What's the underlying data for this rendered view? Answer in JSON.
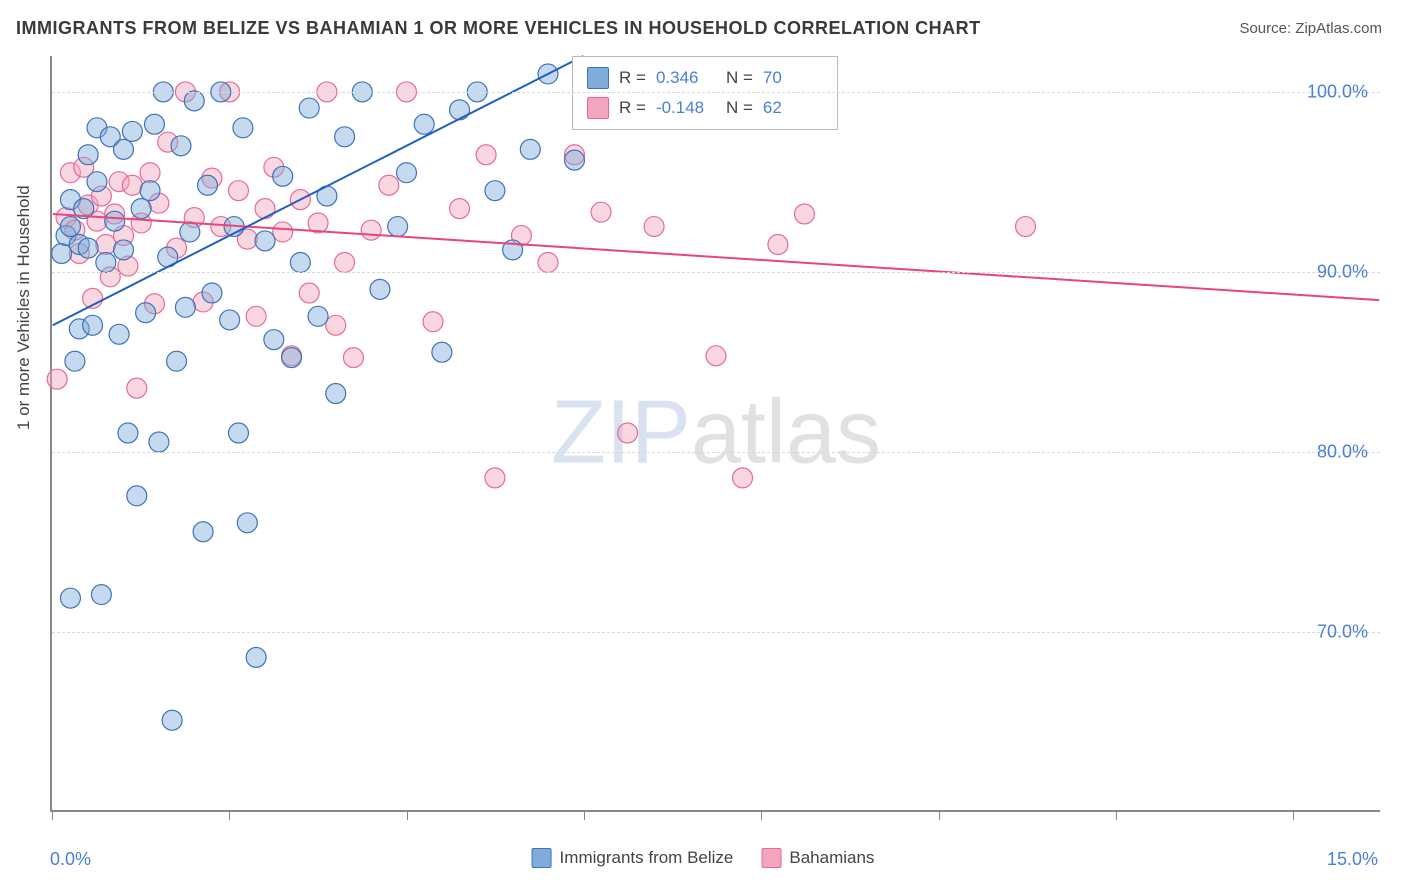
{
  "title": "IMMIGRANTS FROM BELIZE VS BAHAMIAN 1 OR MORE VEHICLES IN HOUSEHOLD CORRELATION CHART",
  "source": "Source: ZipAtlas.com",
  "ylabel": "1 or more Vehicles in Household",
  "watermark": {
    "part1": "ZIP",
    "part2": "atlas"
  },
  "chart": {
    "type": "scatter",
    "background_color": "#ffffff",
    "grid_color": "#d9d9d9",
    "axis_color": "#888888",
    "xlim": [
      0,
      15
    ],
    "ylim": [
      60,
      102
    ],
    "xticks": [
      0,
      2,
      4,
      6,
      8,
      10,
      12,
      14
    ],
    "xtick_labels_shown": {
      "0": "0.0%",
      "15": "15.0%"
    },
    "yticks": [
      70,
      80,
      90,
      100
    ],
    "ytick_labels": [
      "70.0%",
      "80.0%",
      "90.0%",
      "100.0%"
    ],
    "marker_radius": 10,
    "marker_opacity": 0.45,
    "line_width": 2,
    "tick_label_color": "#4a7fd4",
    "tick_label_fontsize": 18,
    "title_fontsize": 18,
    "title_color": "#3a3a3a"
  },
  "series_a": {
    "label": "Immigrants from Belize",
    "fill": "#7facdc",
    "stroke": "#3f72b8",
    "line_color": "#1f5fc4",
    "R": "0.346",
    "N": "70",
    "trend": {
      "x1": 0,
      "y1": 87.0,
      "x2": 6.0,
      "y2": 102.0
    },
    "points": [
      [
        0.1,
        91
      ],
      [
        0.15,
        92
      ],
      [
        0.2,
        92.5
      ],
      [
        0.2,
        94
      ],
      [
        0.25,
        85
      ],
      [
        0.3,
        86.8
      ],
      [
        0.3,
        91.5
      ],
      [
        0.35,
        93.5
      ],
      [
        0.4,
        96.5
      ],
      [
        0.4,
        91.3
      ],
      [
        0.45,
        87
      ],
      [
        0.5,
        95
      ],
      [
        0.5,
        98
      ],
      [
        0.55,
        72
      ],
      [
        0.6,
        90.5
      ],
      [
        0.65,
        97.5
      ],
      [
        0.7,
        92.8
      ],
      [
        0.75,
        86.5
      ],
      [
        0.8,
        96.8
      ],
      [
        0.8,
        91.2
      ],
      [
        0.85,
        81
      ],
      [
        0.9,
        97.8
      ],
      [
        0.95,
        77.5
      ],
      [
        1.0,
        93.5
      ],
      [
        1.05,
        87.7
      ],
      [
        1.1,
        94.5
      ],
      [
        1.15,
        98.2
      ],
      [
        1.2,
        80.5
      ],
      [
        1.25,
        100
      ],
      [
        1.3,
        90.8
      ],
      [
        1.35,
        65
      ],
      [
        1.4,
        85
      ],
      [
        1.45,
        97
      ],
      [
        1.5,
        88
      ],
      [
        1.55,
        92.2
      ],
      [
        1.6,
        99.5
      ],
      [
        1.7,
        75.5
      ],
      [
        1.75,
        94.8
      ],
      [
        1.8,
        88.8
      ],
      [
        1.9,
        100
      ],
      [
        2.0,
        87.3
      ],
      [
        2.05,
        92.5
      ],
      [
        2.1,
        81
      ],
      [
        2.15,
        98
      ],
      [
        2.2,
        76
      ],
      [
        2.3,
        68.5
      ],
      [
        2.4,
        91.7
      ],
      [
        2.5,
        86.2
      ],
      [
        2.6,
        95.3
      ],
      [
        2.7,
        85.2
      ],
      [
        2.8,
        90.5
      ],
      [
        2.9,
        99.1
      ],
      [
        3.0,
        87.5
      ],
      [
        3.1,
        94.2
      ],
      [
        3.2,
        83.2
      ],
      [
        3.3,
        97.5
      ],
      [
        3.5,
        100
      ],
      [
        3.7,
        89
      ],
      [
        3.9,
        92.5
      ],
      [
        4.0,
        95.5
      ],
      [
        4.2,
        98.2
      ],
      [
        4.4,
        85.5
      ],
      [
        4.6,
        99
      ],
      [
        4.8,
        100
      ],
      [
        5.0,
        94.5
      ],
      [
        5.2,
        91.2
      ],
      [
        5.4,
        96.8
      ],
      [
        5.6,
        101
      ],
      [
        5.9,
        96.2
      ],
      [
        0.2,
        71.8
      ]
    ]
  },
  "series_b": {
    "label": "Bahamians",
    "fill": "#f2a6bd",
    "stroke": "#e86a94",
    "line_color": "#e8447d",
    "R": "-0.148",
    "N": "62",
    "trend": {
      "x1": 0,
      "y1": 93.2,
      "x2": 15,
      "y2": 88.4
    },
    "points": [
      [
        0.15,
        93
      ],
      [
        0.2,
        95.5
      ],
      [
        0.25,
        92.3
      ],
      [
        0.3,
        91
      ],
      [
        0.35,
        95.8
      ],
      [
        0.4,
        93.7
      ],
      [
        0.45,
        88.5
      ],
      [
        0.5,
        92.8
      ],
      [
        0.55,
        94.2
      ],
      [
        0.6,
        91.5
      ],
      [
        0.65,
        89.7
      ],
      [
        0.7,
        93.2
      ],
      [
        0.75,
        95
      ],
      [
        0.8,
        92
      ],
      [
        0.85,
        90.3
      ],
      [
        0.9,
        94.8
      ],
      [
        0.95,
        83.5
      ],
      [
        1.0,
        92.7
      ],
      [
        1.1,
        95.5
      ],
      [
        1.15,
        88.2
      ],
      [
        1.2,
        93.8
      ],
      [
        1.3,
        97.2
      ],
      [
        1.4,
        91.3
      ],
      [
        1.5,
        100
      ],
      [
        1.6,
        93
      ],
      [
        1.7,
        88.3
      ],
      [
        1.8,
        95.2
      ],
      [
        1.9,
        92.5
      ],
      [
        2.0,
        100
      ],
      [
        2.1,
        94.5
      ],
      [
        2.2,
        91.8
      ],
      [
        2.3,
        87.5
      ],
      [
        2.4,
        93.5
      ],
      [
        2.5,
        95.8
      ],
      [
        2.6,
        92.2
      ],
      [
        2.7,
        85.3
      ],
      [
        2.8,
        94
      ],
      [
        2.9,
        88.8
      ],
      [
        3.0,
        92.7
      ],
      [
        3.1,
        100
      ],
      [
        3.2,
        87
      ],
      [
        3.3,
        90.5
      ],
      [
        3.4,
        85.2
      ],
      [
        3.6,
        92.3
      ],
      [
        3.8,
        94.8
      ],
      [
        4.0,
        100
      ],
      [
        4.3,
        87.2
      ],
      [
        4.6,
        93.5
      ],
      [
        4.9,
        96.5
      ],
      [
        5.0,
        78.5
      ],
      [
        5.3,
        92
      ],
      [
        5.6,
        90.5
      ],
      [
        5.9,
        96.5
      ],
      [
        6.2,
        93.3
      ],
      [
        6.5,
        81
      ],
      [
        6.8,
        92.5
      ],
      [
        7.5,
        85.3
      ],
      [
        7.8,
        78.5
      ],
      [
        8.2,
        91.5
      ],
      [
        8.5,
        93.2
      ],
      [
        11.0,
        92.5
      ],
      [
        0.05,
        84
      ]
    ]
  },
  "stats_labels": {
    "R": "R =",
    "N": "N ="
  },
  "bottom_legend": {
    "a": "Immigrants from Belize",
    "b": "Bahamians"
  }
}
